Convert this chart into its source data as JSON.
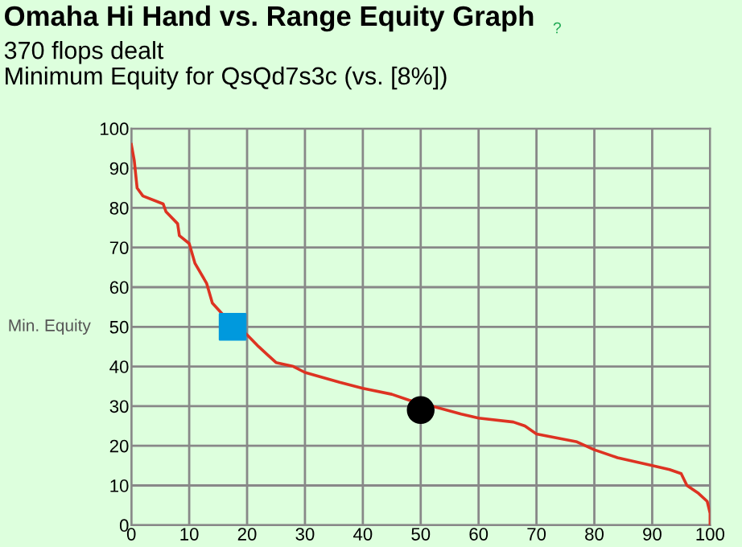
{
  "chart_data": {
    "type": "line",
    "title": "Omaha Hi Hand vs. Range Equity Graph",
    "subtitle": "370 flops dealt\nMinimum Equity for QsQd7s3c (vs. [8%])",
    "ylabel": "Min. Equity",
    "annotations": [
      "?"
    ],
    "xlim": [
      0,
      100
    ],
    "ylim": [
      0,
      100
    ],
    "xticks": [
      0,
      10,
      20,
      30,
      40,
      50,
      60,
      70,
      80,
      90,
      100
    ],
    "yticks": [
      0,
      10,
      20,
      30,
      40,
      50,
      60,
      70,
      80,
      90,
      100
    ],
    "grid": true,
    "series": [
      {
        "color": "#dd3322",
        "marker": "none",
        "x": [
          0,
          0.5,
          1,
          2,
          5.5,
          6,
          8,
          8.3,
          10,
          11,
          13,
          14,
          16.5,
          20,
          22,
          23.5,
          25,
          28,
          30,
          36,
          40,
          45,
          48,
          52,
          57,
          60,
          66,
          68,
          70,
          77,
          80,
          84,
          90,
          93,
          95,
          96,
          98,
          99.5,
          100,
          100
        ],
        "values": [
          96,
          92,
          85,
          83,
          81,
          79,
          76,
          73,
          71,
          66,
          61,
          56,
          52,
          48,
          45,
          43,
          41,
          40,
          38.5,
          36,
          34.5,
          33,
          31.5,
          30,
          28,
          27,
          26,
          25,
          23,
          21,
          19,
          17,
          15,
          14,
          13,
          10,
          8,
          6,
          3,
          0
        ]
      },
      {
        "color": "#0099dd",
        "type": "scatter",
        "marker": "square",
        "x": [
          17.5
        ],
        "values": [
          50
        ]
      },
      {
        "color": "#000000",
        "type": "scatter",
        "marker": "circle",
        "x": [
          50
        ],
        "values": [
          29
        ]
      }
    ]
  }
}
